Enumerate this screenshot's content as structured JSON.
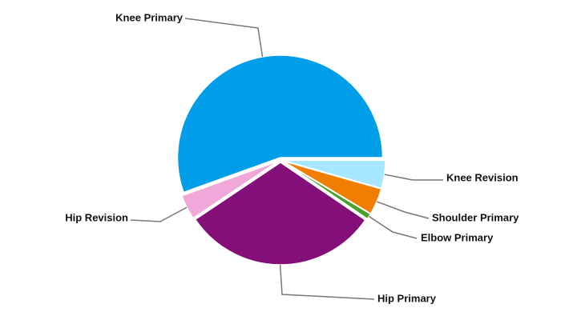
{
  "chart_data": {
    "type": "pie",
    "categories": [
      "Knee Revision",
      "Shoulder Primary",
      "Elbow Primary",
      "Hip Primary",
      "Hip Revision",
      "Knee Primary"
    ],
    "values": [
      4.4,
      4.2,
      0.9,
      31.1,
      3.9,
      55.5
    ],
    "colors": [
      "#a6e6ff",
      "#f07e00",
      "#4aa02c",
      "#850f79",
      "#f0a8d8",
      "#009de9"
    ]
  }
}
